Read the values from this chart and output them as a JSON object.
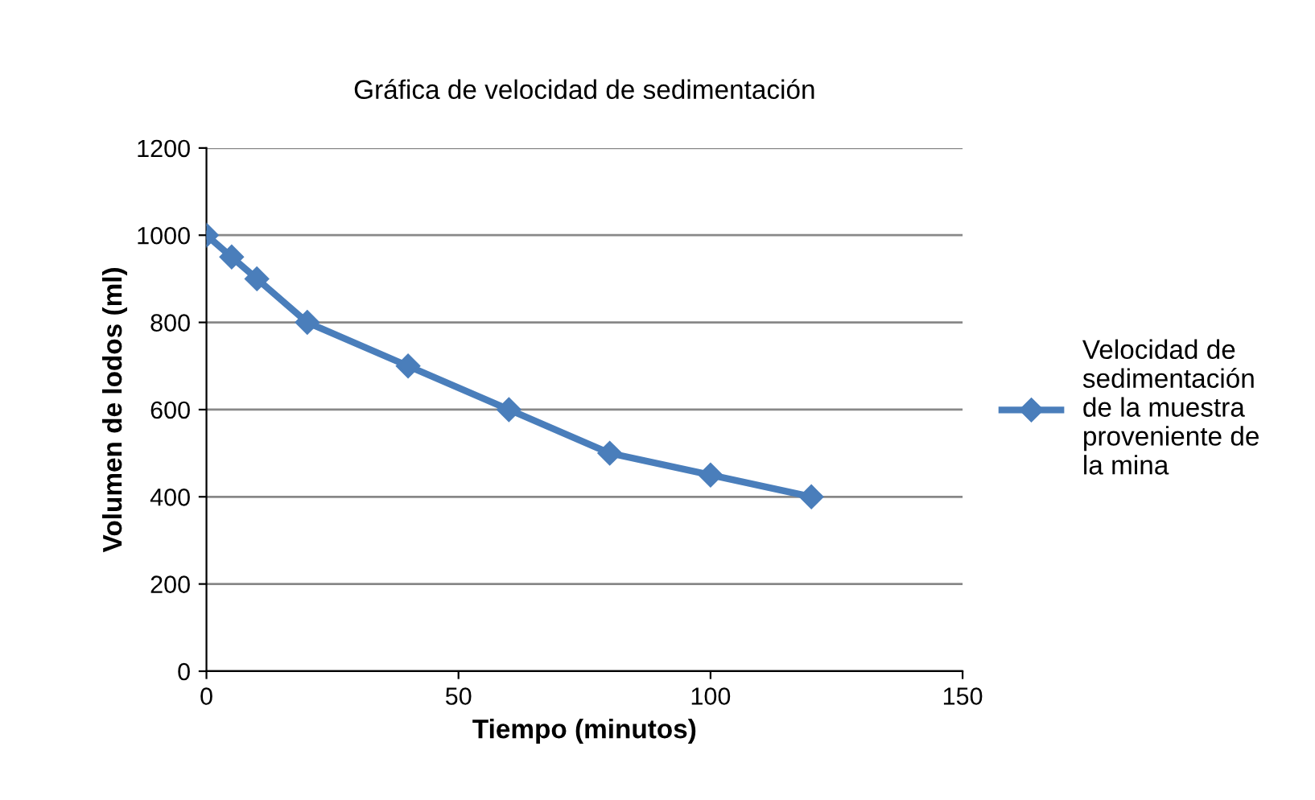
{
  "chart_data": {
    "type": "line",
    "title": "Gráfica de velocidad de sedimentación",
    "xlabel": "Tiempo (minutos)",
    "ylabel": "Volumen de lodos (ml)",
    "x": [
      0,
      5,
      10,
      20,
      40,
      60,
      80,
      100,
      120
    ],
    "series": [
      {
        "name": "Velocidad de\nsedimentación\nde la muestra\nproveniente de\nla mina",
        "color": "#4a7ebb",
        "values": [
          1000,
          950,
          900,
          800,
          700,
          600,
          500,
          450,
          400
        ]
      }
    ],
    "xlim": [
      0,
      150
    ],
    "xticks": [
      0,
      50,
      100,
      150
    ],
    "ylim": [
      0,
      1200
    ],
    "yticks": [
      0,
      200,
      400,
      600,
      800,
      1000,
      1200
    ],
    "grid": "y",
    "legend": "right",
    "marker": "diamond",
    "line_style": "solid"
  }
}
